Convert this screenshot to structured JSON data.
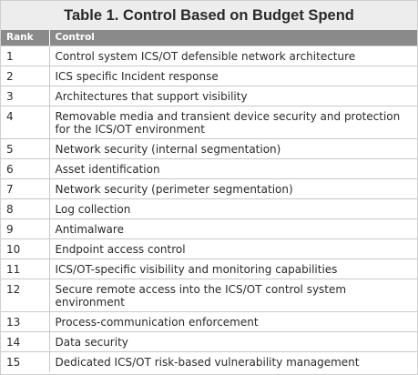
{
  "table": {
    "title": "Table 1. Control Based on Budget Spend",
    "headers": {
      "rank": "Rank",
      "control": "Control"
    },
    "rows": [
      {
        "rank": "1",
        "control": "Control system ICS/OT defensible network architecture"
      },
      {
        "rank": "2",
        "control": "ICS specific Incident response"
      },
      {
        "rank": "3",
        "control": "Architectures that support visibility"
      },
      {
        "rank": "4",
        "control": "Removable media and transient device security and protection for the ICS/OT environment"
      },
      {
        "rank": "5",
        "control": "Network security (internal segmentation)"
      },
      {
        "rank": "6",
        "control": "Asset identification"
      },
      {
        "rank": "7",
        "control": "Network security (perimeter segmentation)"
      },
      {
        "rank": "8",
        "control": "Log collection"
      },
      {
        "rank": "9",
        "control": "Antimalware"
      },
      {
        "rank": "10",
        "control": "Endpoint access control"
      },
      {
        "rank": "11",
        "control": "ICS/OT-specific visibility and monitoring capabilities"
      },
      {
        "rank": "12",
        "control": "Secure remote access into the ICS/OT control system environment"
      },
      {
        "rank": "13",
        "control": "Process-communication enforcement"
      },
      {
        "rank": "14",
        "control": "Data security"
      },
      {
        "rank": "15",
        "control": "Dedicated ICS/OT risk-based vulnerability management"
      }
    ]
  },
  "colors": {
    "title_bg": "#ededed",
    "header_bg": "#8a8a8a",
    "header_text": "#ffffff",
    "grid": "#c8c8c8"
  }
}
